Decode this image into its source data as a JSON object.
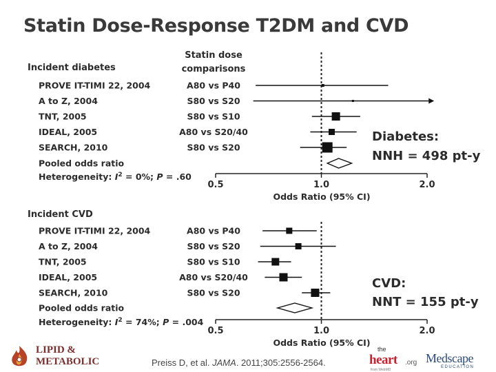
{
  "title": "Statin Dose-Response T2DM and CVD",
  "comparison_header": [
    "Statin dose",
    "comparisons"
  ],
  "chart_data": [
    {
      "type": "forest",
      "section_label": "Incident diabetes",
      "xlabel": "Odds Ratio (95% CI)",
      "xlim": [
        0.5,
        2.0
      ],
      "xticks": [
        "0.5",
        "1.0",
        "2.0"
      ],
      "reference_line": 1.0,
      "studies": [
        {
          "name": "PROVE IT-TIMI 22, 2004",
          "comparison": "A80 vs P40",
          "or": 1.01,
          "lo": 0.65,
          "hi": 1.55,
          "arrow": false,
          "size": 4
        },
        {
          "name": "A to Z, 2004",
          "comparison": "S80 vs S20",
          "or": 1.23,
          "lo": 0.64,
          "hi": 2.02,
          "arrow": true,
          "size": 3
        },
        {
          "name": "TNT, 2005",
          "comparison": "S80 vs S10",
          "or": 1.1,
          "lo": 0.94,
          "hi": 1.29,
          "arrow": false,
          "size": 12
        },
        {
          "name": "IDEAL, 2005",
          "comparison": "A80 vs S20/40",
          "or": 1.07,
          "lo": 0.93,
          "hi": 1.26,
          "arrow": false,
          "size": 9
        },
        {
          "name": "SEARCH, 2010",
          "comparison": "S80 vs S20",
          "or": 1.04,
          "lo": 0.87,
          "hi": 1.18,
          "arrow": false,
          "size": 15
        }
      ],
      "pooled": {
        "label": "Pooled odds ratio",
        "or": 1.12,
        "lo": 1.04,
        "hi": 1.22
      },
      "heterogeneity": {
        "prefix": "Heterogeneity: ",
        "i": "I",
        "sup": "2",
        "rest": " = 0%; ",
        "p": "P",
        "p_val": " = .60"
      },
      "annotation": [
        "Diabetes:",
        "NNH = 498 pt-y"
      ]
    },
    {
      "type": "forest",
      "section_label": "Incident CVD",
      "xlabel": "Odds Ratio (95% CI)",
      "xlim": [
        0.5,
        2.0
      ],
      "xticks": [
        "0.5",
        "1.0",
        "2.0"
      ],
      "reference_line": 1.0,
      "studies": [
        {
          "name": "PROVE IT-TIMI 22, 2004",
          "comparison": "A80 vs P40",
          "or": 0.81,
          "lo": 0.68,
          "hi": 0.97,
          "arrow": false,
          "size": 9
        },
        {
          "name": "A to Z, 2004",
          "comparison": "S80 vs S20",
          "or": 0.86,
          "lo": 0.67,
          "hi": 1.1,
          "arrow": false,
          "size": 9
        },
        {
          "name": "TNT, 2005",
          "comparison": "S80 vs S10",
          "or": 0.74,
          "lo": 0.66,
          "hi": 0.82,
          "arrow": false,
          "size": 11
        },
        {
          "name": "IDEAL, 2005",
          "comparison": "A80 vs S20/40",
          "or": 0.78,
          "lo": 0.69,
          "hi": 0.88,
          "arrow": false,
          "size": 12
        },
        {
          "name": "SEARCH, 2010",
          "comparison": "S80 vs S20",
          "or": 0.96,
          "lo": 0.88,
          "hi": 1.06,
          "arrow": false,
          "size": 12
        }
      ],
      "pooled": {
        "label": "Pooled odds ratio",
        "or": 0.84,
        "lo": 0.75,
        "hi": 0.94
      },
      "heterogeneity": {
        "prefix": "Heterogeneity: ",
        "i": "I",
        "sup": "2",
        "rest": " = 74%; ",
        "p": "P",
        "p_val": " = .004"
      },
      "annotation": [
        "CVD:",
        "NNT = 155 pt-y"
      ]
    }
  ],
  "citation": {
    "pre": "Preiss D, et al. ",
    "journal": "JAMA",
    "post": ". 2011;305:2556-2564."
  },
  "logos": {
    "lipid_top": "LIPID &",
    "lipid_bottom": "METABOLIC",
    "heart_the": "the",
    "heart_main": "heart",
    "heart_org": ".org",
    "heart_sub": "from WebMD",
    "medscape_name": "Medscape",
    "medscape_sub": "EDUCATION"
  },
  "colors": {
    "text": "#2b2b2b",
    "lipid": "#7a2e2e",
    "heart_red": "#c8202d",
    "medscape_blue": "#2b4a7a"
  }
}
